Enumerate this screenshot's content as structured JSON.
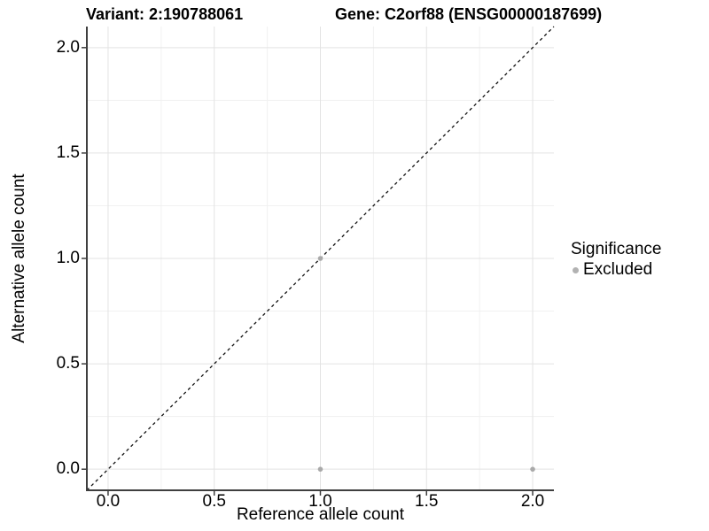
{
  "chart_data": {
    "type": "scatter",
    "titles": {
      "left": "Variant: 2:190788061",
      "right": "Gene: C2orf88 (ENSG00000187699)"
    },
    "xlabel": "Reference allele count",
    "ylabel": "Alternative allele count",
    "xlim": [
      -0.1,
      2.1
    ],
    "ylim": [
      -0.1,
      2.1
    ],
    "grid": "major+minor",
    "x_ticks": {
      "values": [
        0,
        0.5,
        1,
        1.5,
        2
      ],
      "labels": [
        "0.0",
        "0.5",
        "1.0",
        "1.5",
        "2.0"
      ]
    },
    "y_ticks": {
      "values": [
        0,
        0.5,
        1,
        1.5,
        2
      ],
      "labels": [
        "0.0",
        "0.5",
        "1.0",
        "1.5",
        "2.0"
      ]
    },
    "x_minor_ticks": [
      0.25,
      0.75,
      1.25,
      1.75
    ],
    "y_minor_ticks": [
      0.25,
      0.75,
      1.25,
      1.75
    ],
    "reference_line": {
      "kind": "identity",
      "from": [
        -0.1,
        -0.1
      ],
      "to": [
        2.1,
        2.1
      ],
      "style": "dashed",
      "color": "#111111"
    },
    "series": [
      {
        "name": "Excluded",
        "color": "#a9a9a9",
        "points": [
          [
            1,
            1
          ],
          [
            1,
            0
          ],
          [
            2,
            0
          ]
        ]
      }
    ],
    "legend": {
      "title": "Significance",
      "position": "right",
      "items": [
        {
          "label": "Excluded",
          "color": "#b2b2b2"
        }
      ]
    }
  },
  "colors": {
    "background": "#ffffff",
    "grid_major": "#e3e3e3",
    "grid_minor": "#f1f1f1",
    "axis_line": "#3f3f3f",
    "text": "#000000"
  }
}
